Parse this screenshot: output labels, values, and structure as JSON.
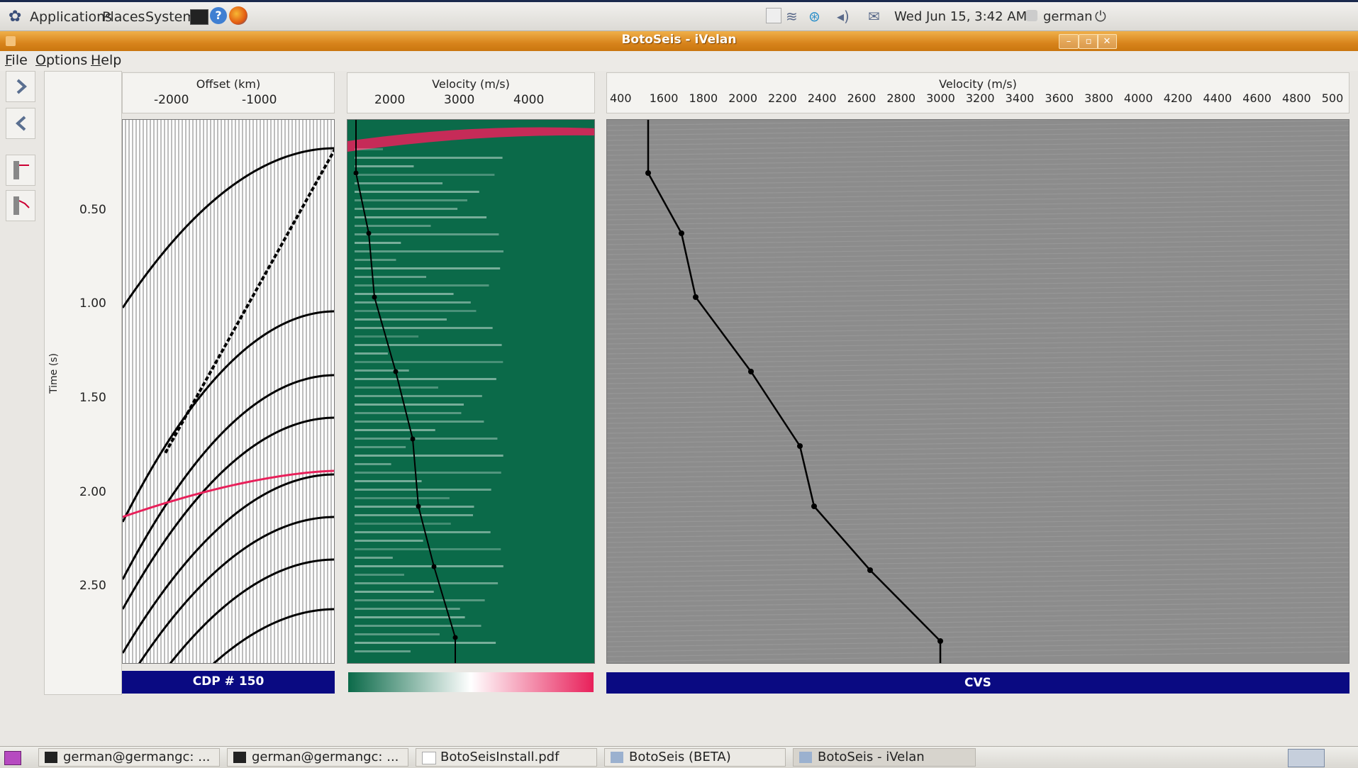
{
  "top_panel": {
    "menus": [
      "Applications",
      "Places",
      "System"
    ],
    "clock": "Wed Jun 15,  3:42 AM",
    "user": "german"
  },
  "window": {
    "title": "BotoSeis - iVelan"
  },
  "menubar": {
    "items": [
      "File",
      "Options",
      "Help"
    ],
    "mnemonics": [
      "F",
      "O",
      "H"
    ],
    "rest": [
      "ile",
      "ptions",
      "elp"
    ]
  },
  "gather_panel": {
    "axis_title": "Offset (km)",
    "x_ticks": [
      "-2000",
      "-1000"
    ],
    "caption": "CDP # 150"
  },
  "time_axis": {
    "label": "Time (s)",
    "ticks": [
      "0.50",
      "1.00",
      "1.50",
      "2.00",
      "2.50"
    ]
  },
  "semblance_panel": {
    "axis_title": "Velocity (m/s)",
    "x_ticks": [
      "2000",
      "3000",
      "4000"
    ],
    "colorbar_colors": [
      "#0b6a49",
      "#ffffff",
      "#e8205a"
    ]
  },
  "cvs_panel": {
    "axis_title": "Velocity (m/s)",
    "x_ticks": [
      "400",
      "1600",
      "1800",
      "2000",
      "2200",
      "2400",
      "2600",
      "2800",
      "3000",
      "3200",
      "3400",
      "3600",
      "3800",
      "4000",
      "4200",
      "4400",
      "4600",
      "4800",
      "500"
    ],
    "caption": "CVS"
  },
  "taskbar": {
    "tasks": [
      "german@germangc: ...",
      "german@germangc: ...",
      "BotoSeisInstall.pdf",
      "BotoSeis (BETA)",
      "BotoSeis - iVelan"
    ]
  },
  "colors": {
    "title_bar": "#d8841c",
    "caption_bar": "#0a0a82",
    "semblance_bg": "#0b6a49",
    "velocity_pick": "#e8205a",
    "cvs_bg": "#8c8c8c"
  }
}
